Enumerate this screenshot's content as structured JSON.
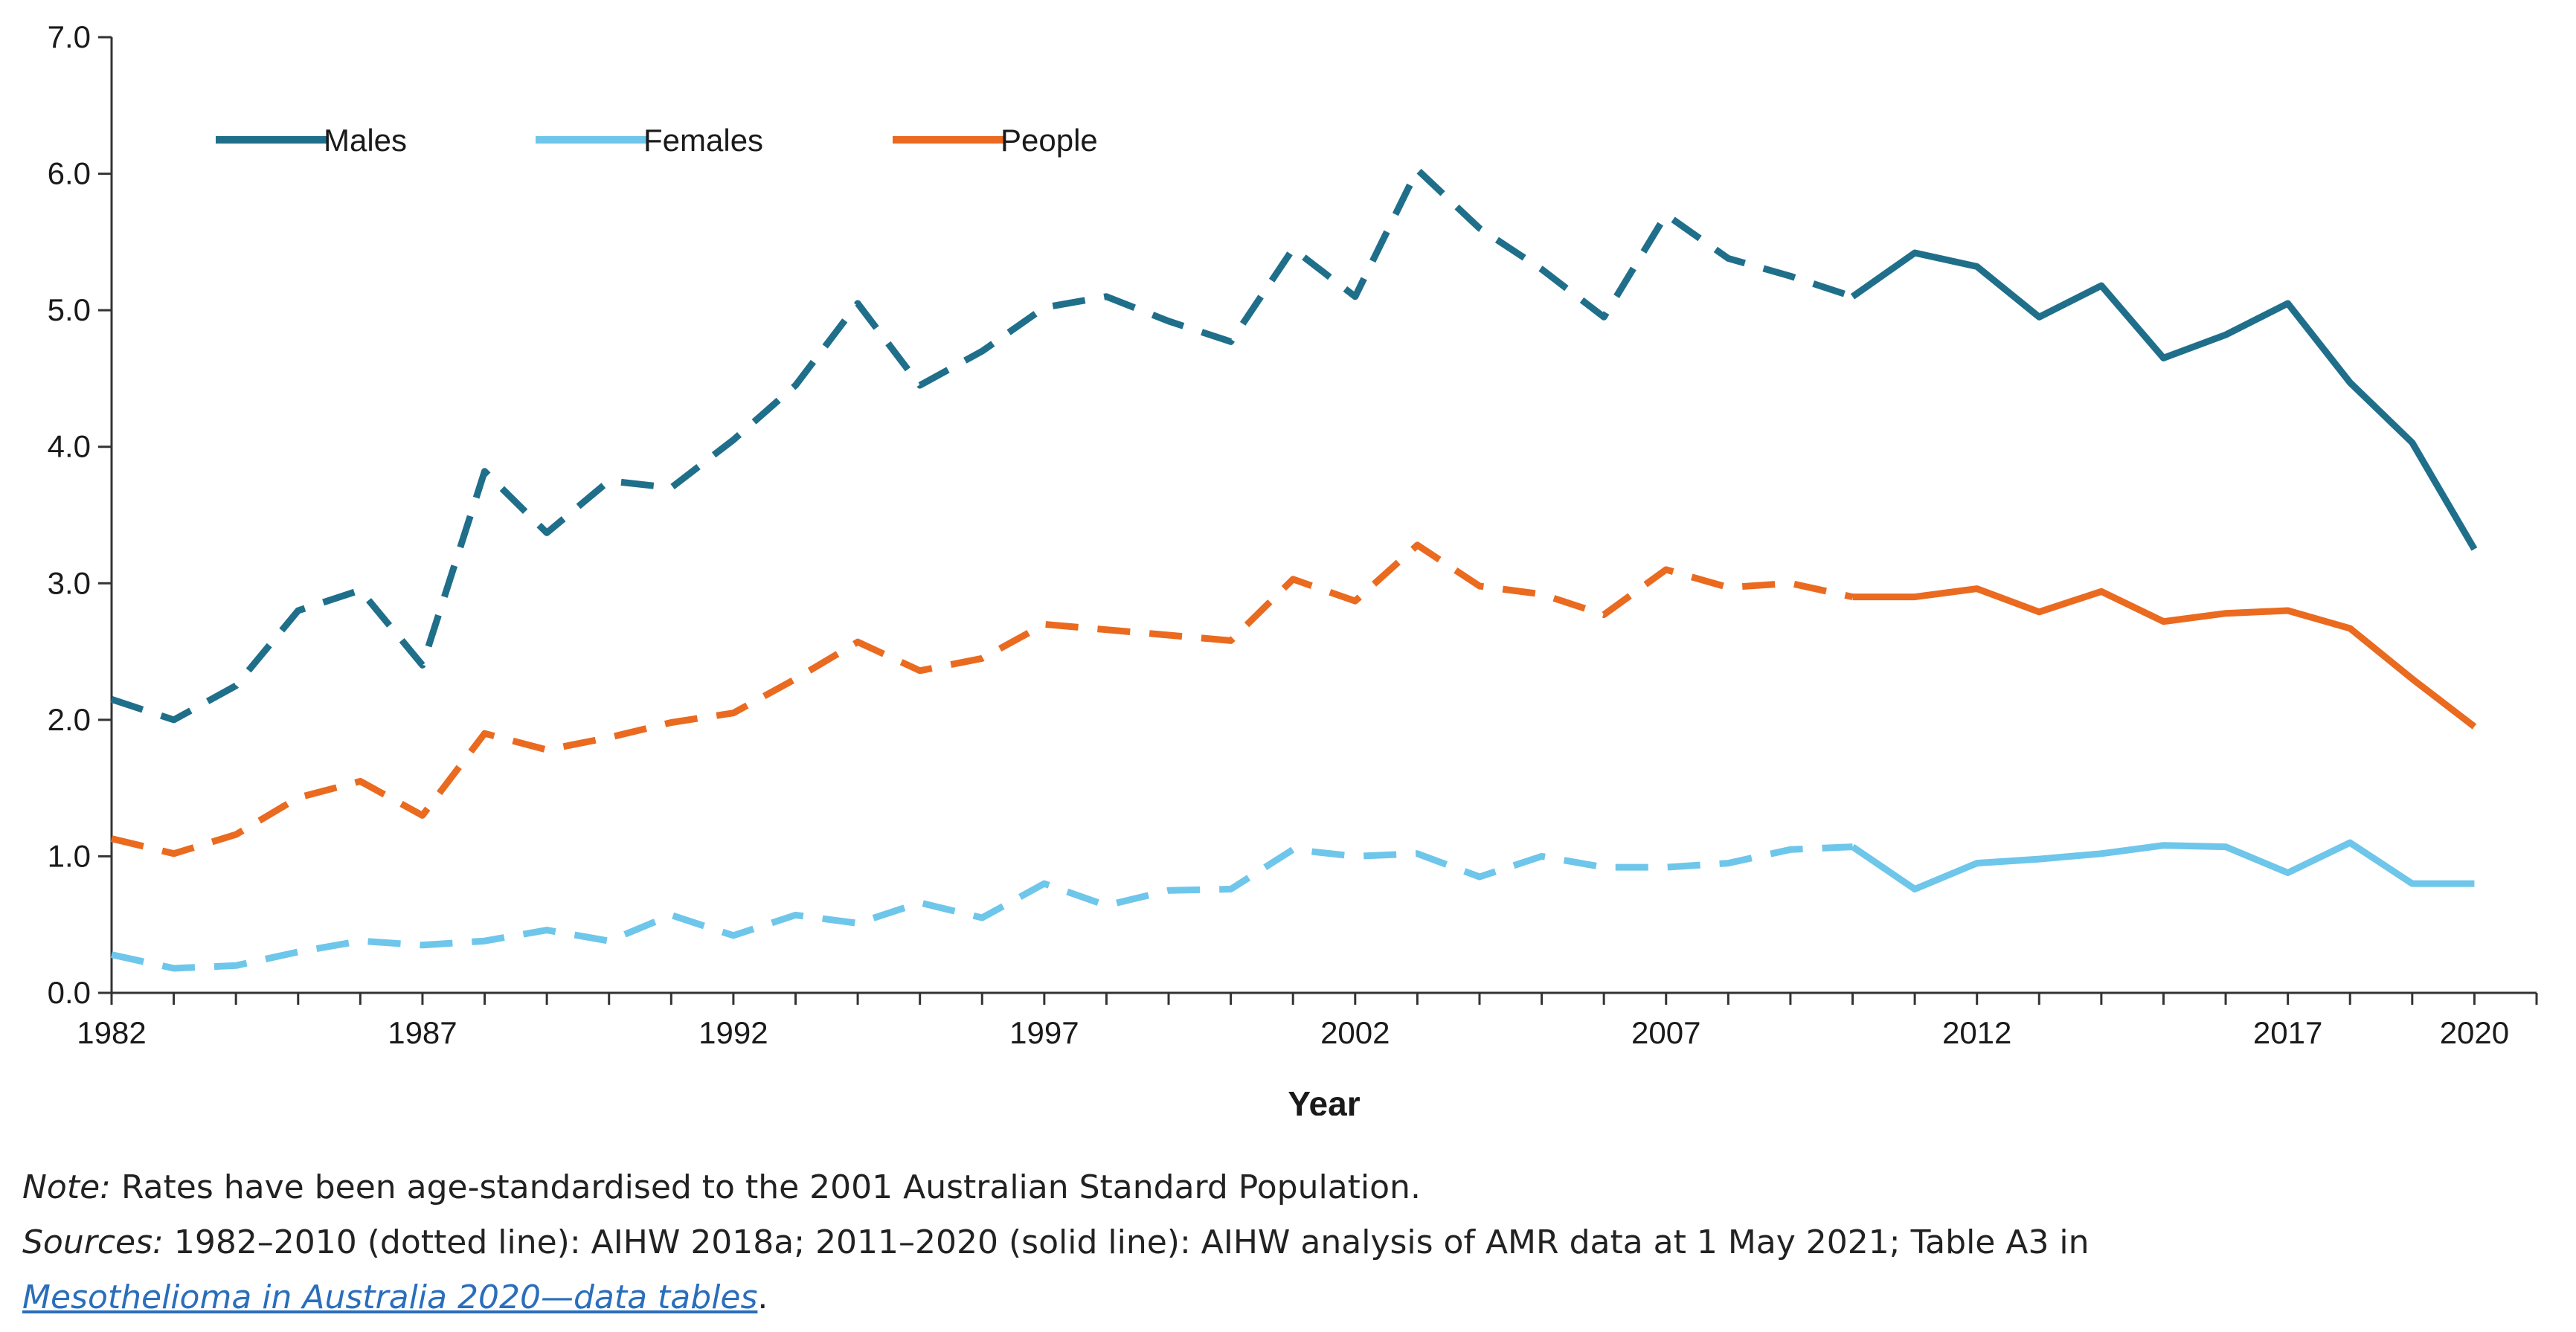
{
  "chart_data": {
    "type": "line",
    "xlabel": "Year",
    "ylabel": "",
    "ylim": [
      0,
      7
    ],
    "xlim": [
      1982,
      2021
    ],
    "x_ticks": [
      "1982",
      "1987",
      "1992",
      "1997",
      "2002",
      "2007",
      "2012",
      "2017",
      "2020"
    ],
    "y_ticks": [
      "0.0",
      "1.0",
      "2.0",
      "3.0",
      "4.0",
      "5.0",
      "6.0",
      "7.0"
    ],
    "grid": false,
    "legend_position": "top-left",
    "dotted_until": 2010,
    "x": [
      1982,
      1983,
      1984,
      1985,
      1986,
      1987,
      1988,
      1989,
      1990,
      1991,
      1992,
      1993,
      1994,
      1995,
      1996,
      1997,
      1998,
      1999,
      2000,
      2001,
      2002,
      2003,
      2004,
      2005,
      2006,
      2007,
      2008,
      2009,
      2010,
      2011,
      2012,
      2013,
      2014,
      2015,
      2016,
      2017,
      2018,
      2019,
      2020
    ],
    "series": [
      {
        "name": "Males",
        "color": "#1f6f8b",
        "values": [
          2.15,
          2.0,
          2.25,
          2.8,
          2.95,
          2.4,
          3.82,
          3.37,
          3.75,
          3.7,
          4.05,
          4.45,
          5.05,
          4.45,
          4.7,
          5.02,
          5.1,
          4.92,
          4.77,
          5.45,
          5.1,
          6.03,
          5.6,
          5.3,
          4.95,
          5.7,
          5.38,
          5.25,
          5.1,
          5.42,
          5.32,
          4.95,
          5.18,
          4.65,
          4.82,
          5.05,
          4.47,
          4.03,
          3.25
        ]
      },
      {
        "name": "Females",
        "color": "#6ec6ea",
        "values": [
          0.28,
          0.18,
          0.2,
          0.3,
          0.38,
          0.35,
          0.38,
          0.46,
          0.38,
          0.57,
          0.42,
          0.57,
          0.51,
          0.66,
          0.55,
          0.8,
          0.64,
          0.75,
          0.76,
          1.05,
          1.0,
          1.02,
          0.85,
          1.0,
          0.92,
          0.92,
          0.95,
          1.05,
          1.07,
          0.76,
          0.95,
          0.98,
          1.02,
          1.08,
          1.07,
          0.88,
          1.1,
          0.8,
          0.8
        ]
      },
      {
        "name": "People",
        "color": "#ea6a1f",
        "values": [
          1.13,
          1.02,
          1.16,
          1.43,
          1.55,
          1.3,
          1.9,
          1.78,
          1.87,
          1.98,
          2.05,
          2.3,
          2.57,
          2.36,
          2.45,
          2.7,
          2.66,
          2.62,
          2.58,
          3.03,
          2.87,
          3.28,
          2.98,
          2.92,
          2.77,
          3.1,
          2.97,
          3.0,
          2.9,
          2.9,
          2.96,
          2.79,
          2.94,
          2.72,
          2.78,
          2.8,
          2.67,
          2.3,
          1.95
        ]
      }
    ]
  },
  "notes": {
    "note_lead": "Note:",
    "note_text": " Rates have been age-standardised to the 2001 Australian Standard Population.",
    "sources_lead": "Sources:",
    "sources_text": " 1982–2010 (dotted line): AIHW 2018a; 2011–2020 (solid line): AIHW analysis of AMR data at 1 May 2021; Table A3 in",
    "sources_link": "Mesothelioma in Australia 2020—data tables",
    "sources_end": "."
  }
}
